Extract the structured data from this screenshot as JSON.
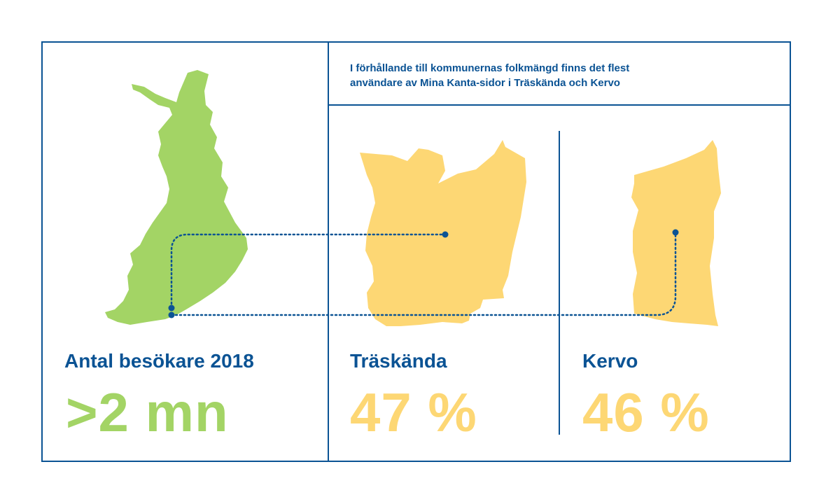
{
  "headline": {
    "line1": "I förhållande till kommunernas folkmängd finns det flest",
    "line2": "användare av Mina Kanta-sidor i Träskända och Kervo"
  },
  "left_panel": {
    "label": "Antal besökare 2018",
    "value": ">2 mn",
    "map_icon": "finland-map-icon"
  },
  "traskanda": {
    "label": "Träskända",
    "value": "47 %",
    "map_icon": "traskanda-map-icon"
  },
  "kervo": {
    "label": "Kervo",
    "value": "46 %",
    "map_icon": "kervo-map-icon"
  },
  "colors": {
    "navy": "#0b5394",
    "green": "#a3d465",
    "yellow": "#fdd774"
  }
}
